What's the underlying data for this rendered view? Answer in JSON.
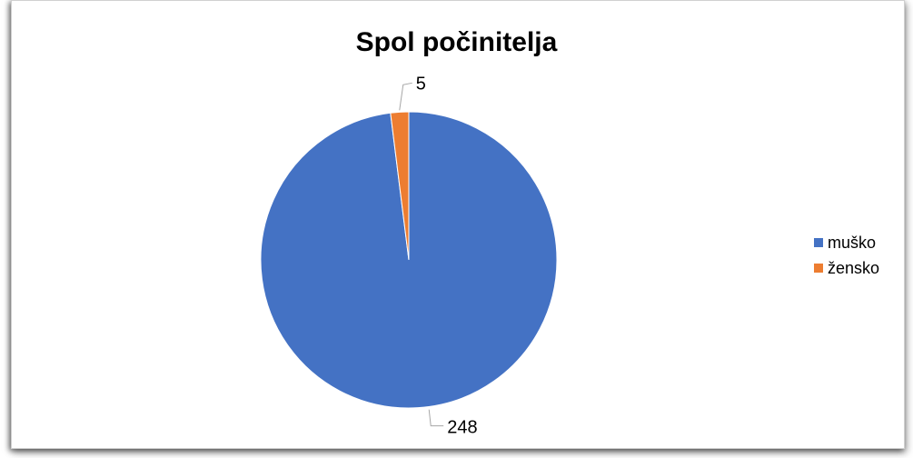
{
  "chart_data": {
    "type": "pie",
    "title": "Spol počinitelja",
    "categories": [
      "muško",
      "žensko"
    ],
    "values": [
      248,
      5
    ],
    "colors": [
      "#4472C4",
      "#ED7D31"
    ],
    "data_labels": [
      "248",
      "5"
    ],
    "legend_position": "right"
  }
}
